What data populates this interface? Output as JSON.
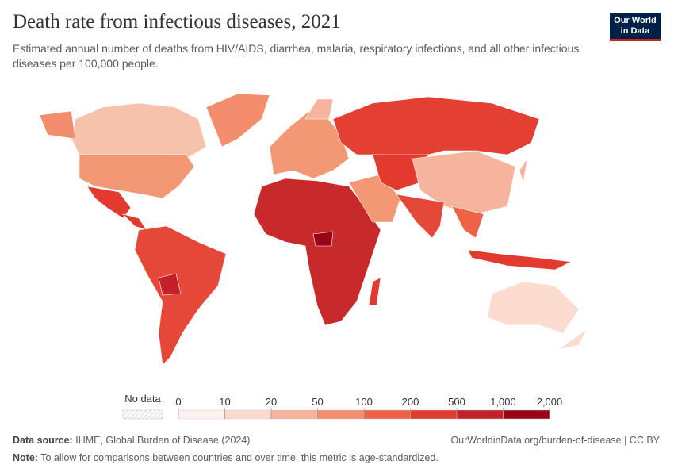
{
  "header": {
    "title": "Death rate from infectious diseases, 2021",
    "subtitle": "Estimated annual number of deaths from HIV/AIDS, diarrhea, malaria, respiratory infections, and all other infectious diseases per 100,000 people.",
    "logo": [
      "Our World",
      "in Data"
    ]
  },
  "legend": {
    "no_data": "No data",
    "ticks": [
      "0",
      "10",
      "20",
      "50",
      "100",
      "200",
      "500",
      "1,000",
      "2,000"
    ],
    "colors": [
      "#fdf2ee",
      "#fbd9cc",
      "#f7b49c",
      "#f38d6d",
      "#ee6248",
      "#e23a2e",
      "#c3202a",
      "#990516"
    ]
  },
  "footer": {
    "source_label": "Data source:",
    "source": "IHME, Global Burden of Disease (2024)",
    "url": "OurWorldinData.org/burden-of-disease | CC BY",
    "note_label": "Note:",
    "note": "To allow for comparisons between countries and over time, this metric is age-standardized."
  }
}
